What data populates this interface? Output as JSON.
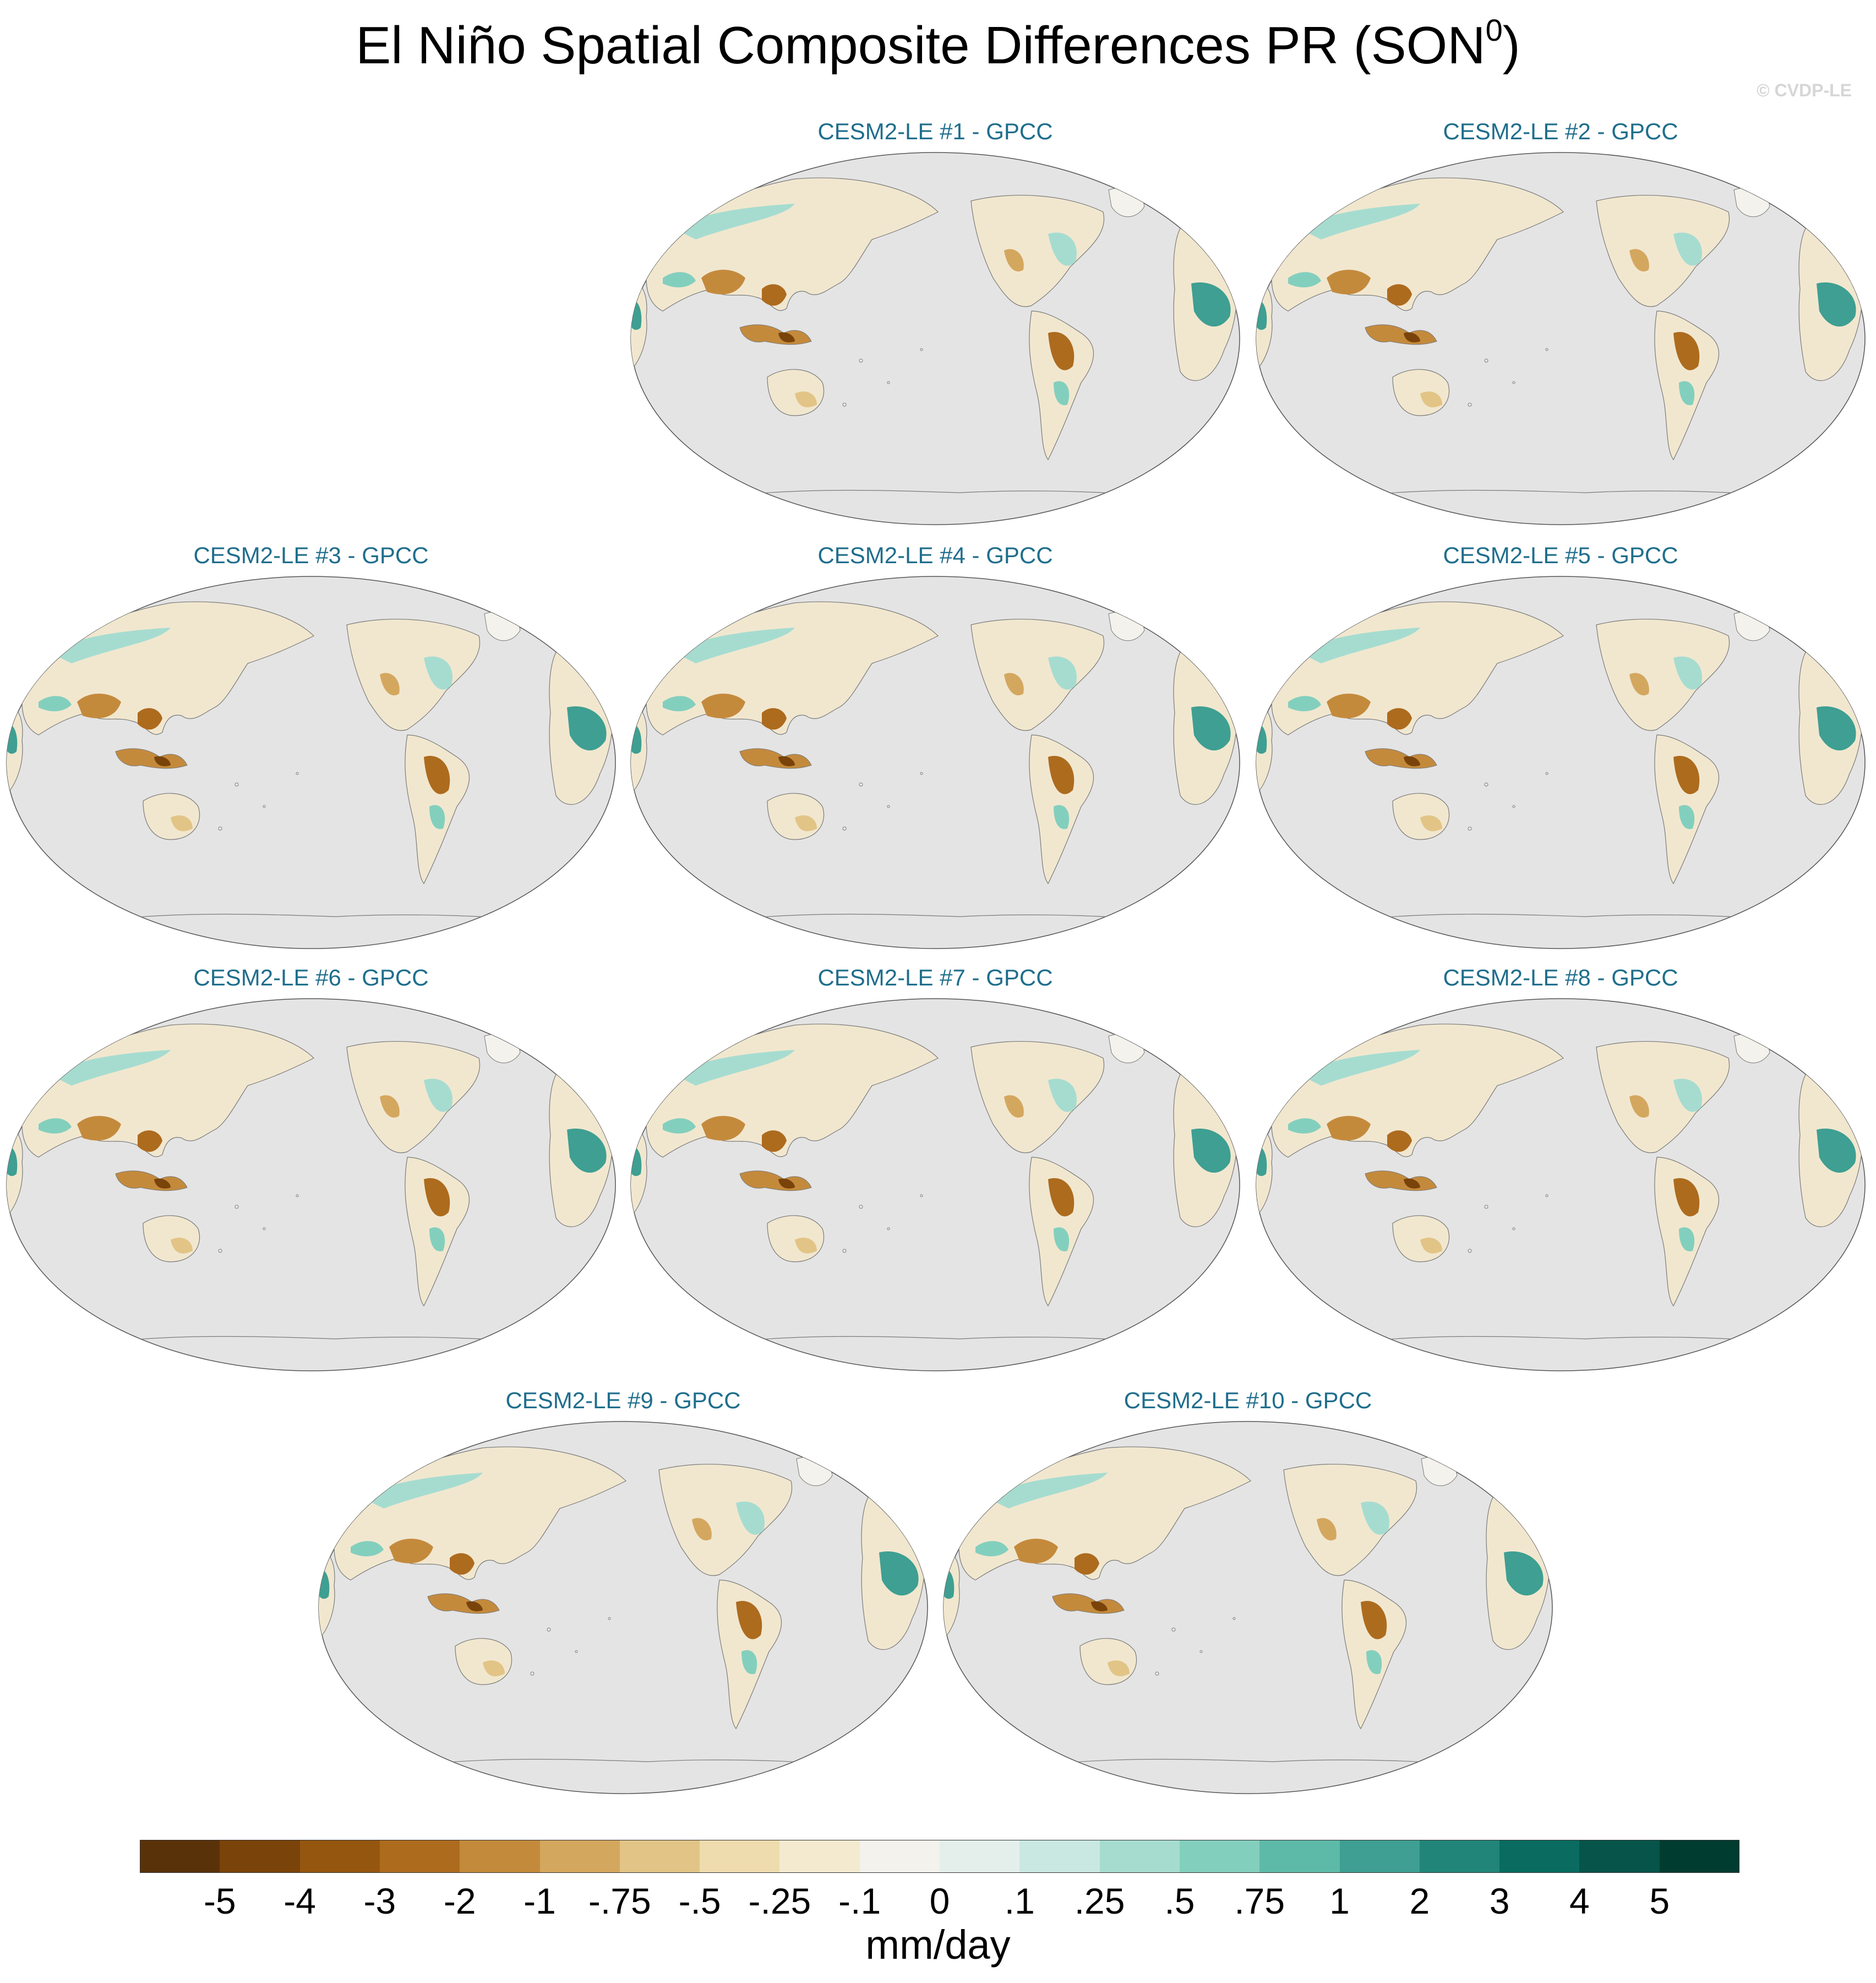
{
  "title_main": "El Niño Spatial Composite Differences PR (SON",
  "title_sup": "0",
  "title_close": ")",
  "credit": "© CVDP-LE",
  "units": "mm/day",
  "colors": {
    "panel_title": "#1f6e8c",
    "ocean": "#e4e4e4",
    "coastline": "#7a7a7a"
  },
  "panels": [
    {
      "title": "CESM2-LE #1 - GPCC"
    },
    {
      "title": "CESM2-LE #2 - GPCC"
    },
    {
      "title": "CESM2-LE #3 - GPCC"
    },
    {
      "title": "CESM2-LE #4 - GPCC"
    },
    {
      "title": "CESM2-LE #5 - GPCC"
    },
    {
      "title": "CESM2-LE #6 - GPCC"
    },
    {
      "title": "CESM2-LE #7 - GPCC"
    },
    {
      "title": "CESM2-LE #8 - GPCC"
    },
    {
      "title": "CESM2-LE #9 - GPCC"
    },
    {
      "title": "CESM2-LE #10 - GPCC"
    }
  ],
  "chart_data": {
    "type": "heatmap",
    "projection": "robinson, pacific-centered",
    "colorbar": {
      "colors": [
        "#5a3209",
        "#7a4309",
        "#95560f",
        "#ad6b1e",
        "#c48a3c",
        "#d4a75f",
        "#e2c486",
        "#eedcae",
        "#f4ead0",
        "#f4f2ec",
        "#e4efec",
        "#c9e8e1",
        "#a6dcd0",
        "#83cfbd",
        "#5ebaa8",
        "#3e9f92",
        "#228579",
        "#0a6b60",
        "#06544a",
        "#003c30"
      ],
      "tick_labels": [
        "-5",
        "-4",
        "-3",
        "-2",
        "-1",
        "-.75",
        "-.5",
        "-.25",
        "-.1",
        "0",
        ".1",
        ".25",
        ".5",
        ".75",
        "1",
        "2",
        "3",
        "4",
        "5"
      ]
    }
  }
}
